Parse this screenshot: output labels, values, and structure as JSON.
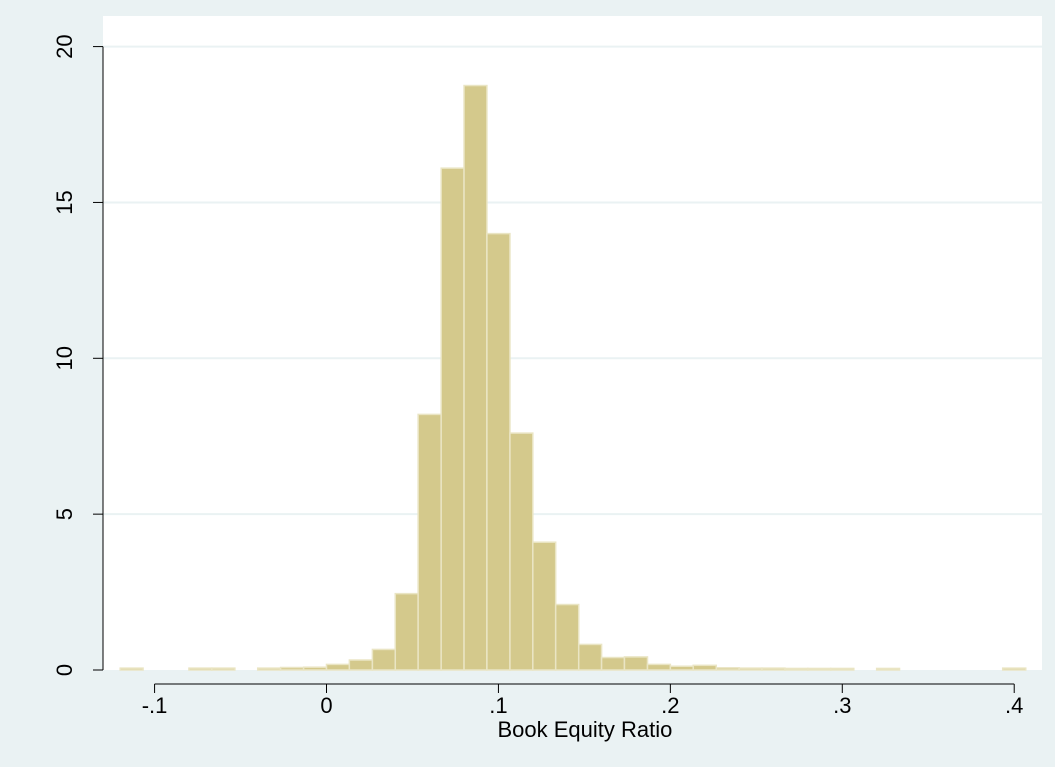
{
  "chart_data": {
    "type": "bar",
    "title": "",
    "xlabel": "Book Equity Ratio",
    "ylabel": "",
    "xlim": [
      -0.13,
      0.415
    ],
    "ylim": [
      0,
      20.5
    ],
    "grid": true,
    "bin_width": 0.01333,
    "bins": [
      {
        "x0": -0.12,
        "x1": -0.1067,
        "value": 0.06
      },
      {
        "x0": -0.08,
        "x1": -0.0667,
        "value": 0.06
      },
      {
        "x0": -0.0667,
        "x1": -0.0533,
        "value": 0.06
      },
      {
        "x0": -0.04,
        "x1": -0.0267,
        "value": 0.06
      },
      {
        "x0": -0.0267,
        "x1": -0.0133,
        "value": 0.08
      },
      {
        "x0": -0.0133,
        "x1": 0.0,
        "value": 0.09
      },
      {
        "x0": 0.0,
        "x1": 0.0133,
        "value": 0.18
      },
      {
        "x0": 0.0133,
        "x1": 0.0267,
        "value": 0.32
      },
      {
        "x0": 0.0267,
        "x1": 0.04,
        "value": 0.66
      },
      {
        "x0": 0.04,
        "x1": 0.0533,
        "value": 2.45
      },
      {
        "x0": 0.0533,
        "x1": 0.0667,
        "value": 8.2
      },
      {
        "x0": 0.0667,
        "x1": 0.08,
        "value": 16.1
      },
      {
        "x0": 0.08,
        "x1": 0.0933,
        "value": 18.75
      },
      {
        "x0": 0.0933,
        "x1": 0.1067,
        "value": 14.0
      },
      {
        "x0": 0.1067,
        "x1": 0.12,
        "value": 7.6
      },
      {
        "x0": 0.12,
        "x1": 0.1333,
        "value": 4.1
      },
      {
        "x0": 0.1333,
        "x1": 0.1467,
        "value": 2.1
      },
      {
        "x0": 0.1467,
        "x1": 0.16,
        "value": 0.82
      },
      {
        "x0": 0.16,
        "x1": 0.1733,
        "value": 0.4
      },
      {
        "x0": 0.1733,
        "x1": 0.1867,
        "value": 0.42
      },
      {
        "x0": 0.1867,
        "x1": 0.2,
        "value": 0.18
      },
      {
        "x0": 0.2,
        "x1": 0.2133,
        "value": 0.12
      },
      {
        "x0": 0.2133,
        "x1": 0.2267,
        "value": 0.15
      },
      {
        "x0": 0.2267,
        "x1": 0.24,
        "value": 0.07
      },
      {
        "x0": 0.24,
        "x1": 0.2533,
        "value": 0.06
      },
      {
        "x0": 0.2533,
        "x1": 0.2667,
        "value": 0.06
      },
      {
        "x0": 0.2667,
        "x1": 0.28,
        "value": 0.05
      },
      {
        "x0": 0.28,
        "x1": 0.2933,
        "value": 0.05
      },
      {
        "x0": 0.2933,
        "x1": 0.3067,
        "value": 0.05
      },
      {
        "x0": 0.32,
        "x1": 0.3333,
        "value": 0.05
      },
      {
        "x0": 0.3933,
        "x1": 0.4067,
        "value": 0.06
      }
    ],
    "xticks": [
      {
        "value": -0.1,
        "label": "-.1"
      },
      {
        "value": 0,
        "label": "0"
      },
      {
        "value": 0.1,
        "label": ".1"
      },
      {
        "value": 0.2,
        "label": ".2"
      },
      {
        "value": 0.3,
        "label": ".3"
      },
      {
        "value": 0.4,
        "label": ".4"
      }
    ],
    "yticks": [
      {
        "value": 0,
        "label": "0"
      },
      {
        "value": 5,
        "label": "5"
      },
      {
        "value": 10,
        "label": "10"
      },
      {
        "value": 15,
        "label": "15"
      },
      {
        "value": 20,
        "label": "20"
      }
    ]
  },
  "colors": {
    "outer_background": "#eaf2f3",
    "plot_background": "#ffffff",
    "bar_fill": "#d4c98c",
    "bar_stroke": "#eae5c4",
    "grid": "#eaf2f3",
    "axis": "#000000"
  }
}
